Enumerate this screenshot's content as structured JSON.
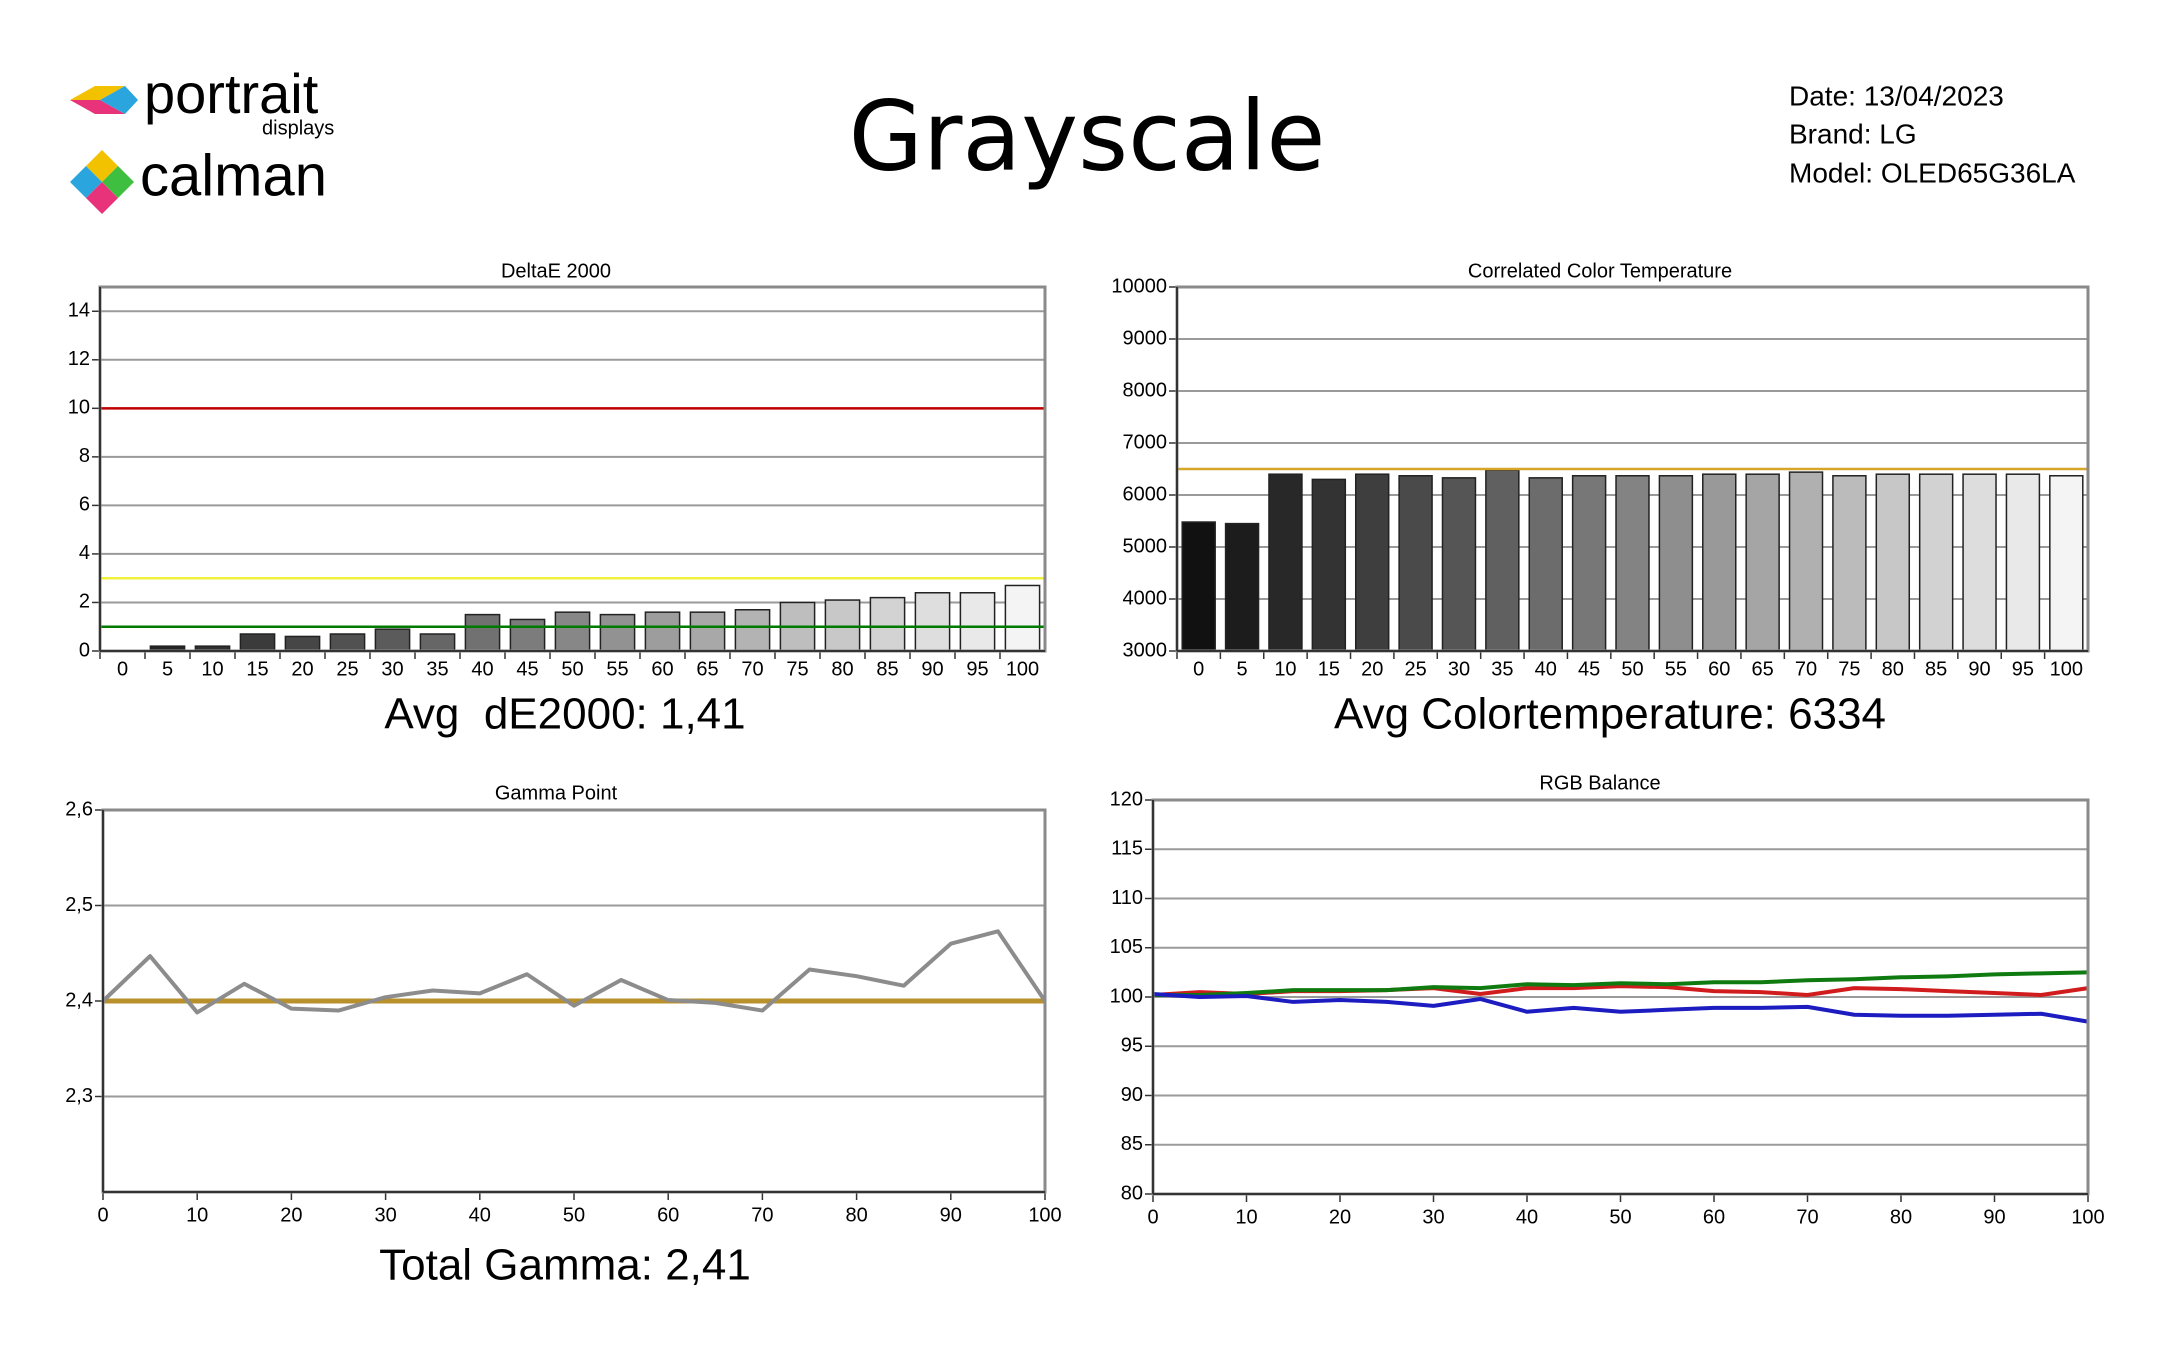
{
  "header": {
    "logo_lines": [
      "portrait",
      "displays",
      "calman"
    ],
    "title": "Grayscale",
    "info": [
      "Date: 13/04/2023",
      "Brand: LG",
      "Model: OLED65G36LA"
    ]
  },
  "chart_data": [
    {
      "type": "bar",
      "title": "DeltaE 2000",
      "categories": [
        0,
        5,
        10,
        15,
        20,
        25,
        30,
        35,
        40,
        45,
        50,
        55,
        60,
        65,
        70,
        75,
        80,
        85,
        90,
        95,
        100
      ],
      "values": [
        0,
        0.2,
        0.2,
        0.7,
        0.6,
        0.7,
        0.9,
        0.7,
        1.5,
        1.3,
        1.6,
        1.5,
        1.6,
        1.6,
        1.7,
        2.0,
        2.1,
        2.2,
        2.4,
        2.4,
        2.7
      ],
      "color_start": "#1a1a1a",
      "color_end": "#f4f4f4",
      "ylim": [
        0,
        15
      ],
      "yticks": [
        0,
        2,
        4,
        6,
        8,
        10,
        12,
        14
      ],
      "grid": true,
      "reference_lines": [
        {
          "value": 10,
          "color": "#c00000"
        },
        {
          "value": 3,
          "color": "#f2f23c"
        },
        {
          "value": 1,
          "color": "#007a00"
        }
      ],
      "annotation": "Avg  dE2000: 1,41"
    },
    {
      "type": "bar",
      "title": "Correlated Color Temperature",
      "categories": [
        0,
        5,
        10,
        15,
        20,
        25,
        30,
        35,
        40,
        45,
        50,
        55,
        60,
        65,
        70,
        75,
        80,
        85,
        90,
        95,
        100
      ],
      "values": [
        5480,
        5450,
        6400,
        6300,
        6400,
        6370,
        6330,
        6480,
        6330,
        6370,
        6370,
        6370,
        6400,
        6400,
        6440,
        6370,
        6400,
        6400,
        6400,
        6400,
        6370
      ],
      "color_start": "#111111",
      "color_end": "#f4f4f4",
      "ylim": [
        3000,
        10000
      ],
      "yticks": [
        3000,
        4000,
        5000,
        6000,
        7000,
        8000,
        9000,
        10000
      ],
      "grid": true,
      "reference_lines": [
        {
          "value": 6500,
          "color": "#d6a52a"
        }
      ],
      "annotation": "Avg Colortemperature: 6334"
    },
    {
      "type": "line",
      "title": "Gamma Point",
      "x": [
        0,
        5,
        10,
        15,
        20,
        25,
        30,
        35,
        40,
        45,
        50,
        55,
        60,
        65,
        70,
        75,
        80,
        85,
        90,
        95,
        100
      ],
      "series": [
        {
          "color": "#8c8c8c",
          "values": [
            2.4,
            2.447,
            2.388,
            2.418,
            2.392,
            2.39,
            2.404,
            2.411,
            2.408,
            2.428,
            2.395,
            2.422,
            2.401,
            2.398,
            2.39,
            2.433,
            2.426,
            2.416,
            2.46,
            2.473,
            2.4
          ]
        }
      ],
      "xlim": [
        0,
        100
      ],
      "xticks": [
        0,
        10,
        20,
        30,
        40,
        50,
        60,
        70,
        80,
        90,
        100
      ],
      "ylim": [
        2.2,
        2.6
      ],
      "yticks": [
        {
          "value": 2.3,
          "label": "2,3"
        },
        {
          "value": 2.4,
          "label": "2,4"
        },
        {
          "value": 2.5,
          "label": "2,5"
        },
        {
          "value": 2.6,
          "label": "2,6"
        }
      ],
      "grid": true,
      "reference_lines": [
        {
          "value": 2.4,
          "color": "#b8902c"
        }
      ],
      "annotation": "Total Gamma: 2,41"
    },
    {
      "type": "line",
      "title": "RGB Balance",
      "x": [
        0,
        5,
        10,
        15,
        20,
        25,
        30,
        35,
        40,
        45,
        50,
        55,
        60,
        65,
        70,
        75,
        80,
        85,
        90,
        95,
        100
      ],
      "series": [
        {
          "color": "#d01c1c",
          "values": [
            100.2,
            100.5,
            100.3,
            100.6,
            100.6,
            100.7,
            100.9,
            100.3,
            100.9,
            100.9,
            101.1,
            101.0,
            100.6,
            100.5,
            100.2,
            100.9,
            100.8,
            100.6,
            100.4,
            100.2,
            100.9
          ]
        },
        {
          "color": "#0f7a0f",
          "values": [
            100.2,
            100.2,
            100.4,
            100.7,
            100.7,
            100.7,
            101.0,
            100.9,
            101.3,
            101.2,
            101.4,
            101.3,
            101.5,
            101.5,
            101.7,
            101.8,
            102.0,
            102.1,
            102.3,
            102.4,
            102.5
          ]
        },
        {
          "color": "#1c1cc0",
          "values": [
            100.3,
            100.0,
            100.1,
            99.5,
            99.7,
            99.5,
            99.1,
            99.8,
            98.5,
            98.9,
            98.5,
            98.7,
            98.9,
            98.9,
            99.0,
            98.2,
            98.1,
            98.1,
            98.2,
            98.3,
            97.5
          ]
        }
      ],
      "xlim": [
        0,
        100
      ],
      "xticks": [
        0,
        10,
        20,
        30,
        40,
        50,
        60,
        70,
        80,
        90,
        100
      ],
      "ylim": [
        80,
        120
      ],
      "yticks": [
        80,
        85,
        90,
        95,
        100,
        105,
        110,
        115,
        120
      ],
      "grid": true
    }
  ]
}
